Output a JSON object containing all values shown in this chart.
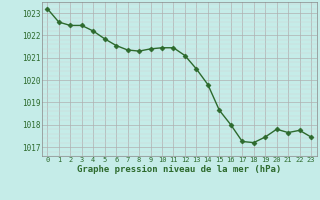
{
  "x": [
    0,
    1,
    2,
    3,
    4,
    5,
    6,
    7,
    8,
    9,
    10,
    11,
    12,
    13,
    14,
    15,
    16,
    17,
    18,
    19,
    20,
    21,
    22,
    23
  ],
  "y": [
    1023.2,
    1022.6,
    1022.45,
    1022.45,
    1022.2,
    1021.85,
    1021.55,
    1021.35,
    1021.3,
    1021.4,
    1021.45,
    1021.45,
    1021.1,
    1020.5,
    1019.8,
    1018.65,
    1018.0,
    1017.25,
    1017.2,
    1017.45,
    1017.8,
    1017.65,
    1017.75,
    1017.45
  ],
  "line_color": "#2d6a2d",
  "marker_color": "#2d6a2d",
  "bg_color": "#c5ece8",
  "grid_major_color": "#b0b0b0",
  "grid_minor_color": "#d0d0d0",
  "xlabel": "Graphe pression niveau de la mer (hPa)",
  "xlabel_color": "#2d6a2d",
  "tick_color": "#2d6a2d",
  "ylim": [
    1016.6,
    1023.5
  ],
  "yticks": [
    1017,
    1018,
    1019,
    1020,
    1021,
    1022,
    1023
  ],
  "xticks": [
    0,
    1,
    2,
    3,
    4,
    5,
    6,
    7,
    8,
    9,
    10,
    11,
    12,
    13,
    14,
    15,
    16,
    17,
    18,
    19,
    20,
    21,
    22,
    23
  ],
  "xtick_labels": [
    "0",
    "1",
    "2",
    "3",
    "4",
    "5",
    "6",
    "7",
    "8",
    "9",
    "10",
    "11",
    "12",
    "13",
    "14",
    "15",
    "16",
    "17",
    "18",
    "19",
    "20",
    "21",
    "22",
    "23"
  ],
  "linewidth": 1.0,
  "markersize": 2.5
}
